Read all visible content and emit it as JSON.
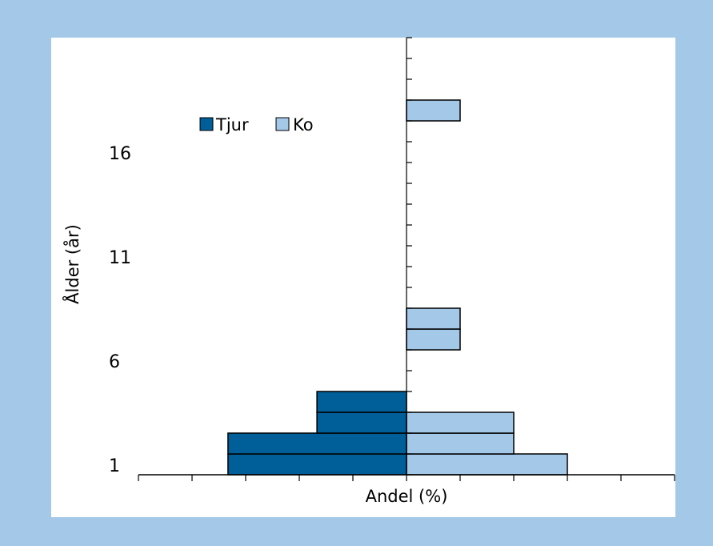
{
  "chart_data": {
    "type": "bar",
    "orientation": "horizontal-population-pyramid",
    "xlabel": "Andel (%)",
    "ylabel": "Ålder (år)",
    "ages": [
      1,
      2,
      3,
      4,
      5,
      6,
      7,
      8,
      9,
      10,
      11,
      12,
      13,
      14,
      15,
      16,
      17,
      18,
      19,
      20
    ],
    "y_tick_labels": [
      "1",
      "6",
      "11",
      "16"
    ],
    "series": [
      {
        "name": "Tjur",
        "color": "#005f99",
        "values": [
          -3.33,
          -3.33,
          -1.67,
          -1.67,
          0,
          0,
          0,
          0,
          0,
          0,
          0,
          0,
          0,
          0,
          0,
          0,
          0,
          0,
          0,
          0
        ]
      },
      {
        "name": "Ko",
        "color": "#a3c8e8",
        "values": [
          3,
          2,
          2,
          0,
          0,
          0,
          1,
          1,
          0,
          0,
          0,
          0,
          0,
          0,
          0,
          0,
          0,
          1,
          0,
          0
        ]
      }
    ],
    "xlim": [
      -5,
      5
    ],
    "legend_position": "top-left",
    "grid": false
  }
}
